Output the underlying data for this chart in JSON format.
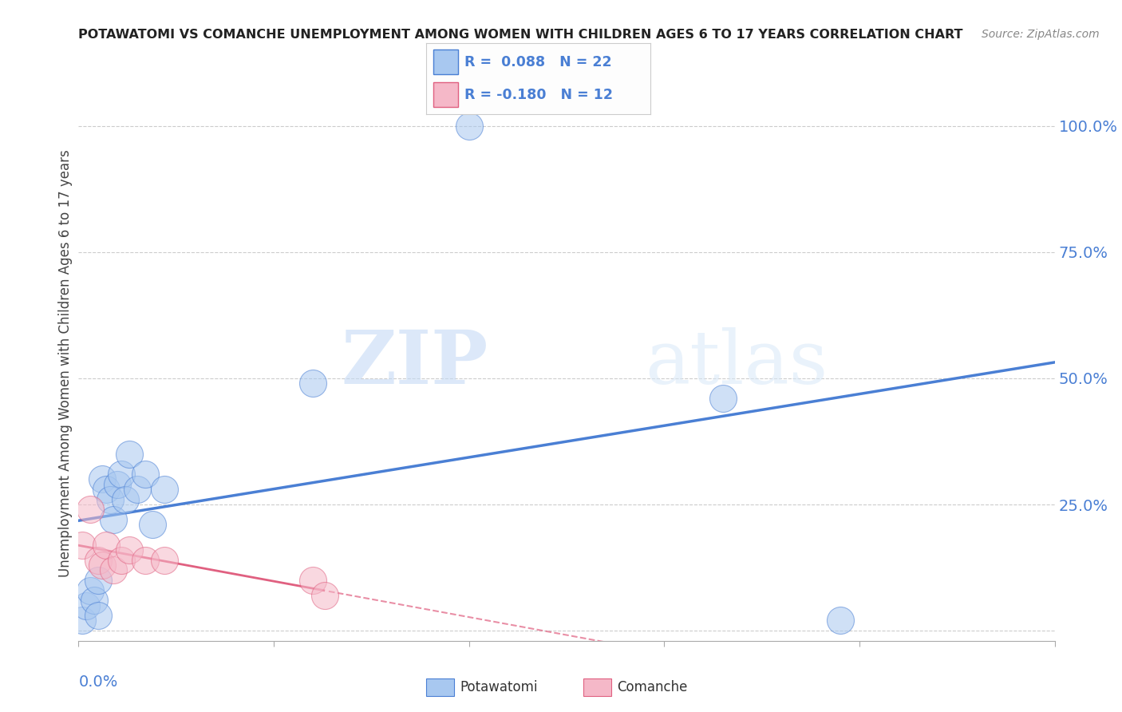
{
  "title": "POTAWATOMI VS COMANCHE UNEMPLOYMENT AMONG WOMEN WITH CHILDREN AGES 6 TO 17 YEARS CORRELATION CHART",
  "source": "Source: ZipAtlas.com",
  "ylabel": "Unemployment Among Women with Children Ages 6 to 17 years",
  "xlim": [
    0.0,
    0.25
  ],
  "ylim": [
    -0.02,
    1.08
  ],
  "yticks": [
    0.0,
    0.25,
    0.5,
    0.75,
    1.0
  ],
  "ytick_labels": [
    "",
    "25.0%",
    "50.0%",
    "75.0%",
    "100.0%"
  ],
  "potawatomi_color": "#a8c8f0",
  "comanche_color": "#f5b8c8",
  "potawatomi_line_color": "#4a7fd4",
  "comanche_line_color": "#e06080",
  "R_potawatomi": 0.088,
  "N_potawatomi": 22,
  "R_comanche": -0.18,
  "N_comanche": 12,
  "potawatomi_x": [
    0.001,
    0.002,
    0.003,
    0.004,
    0.005,
    0.005,
    0.006,
    0.007,
    0.008,
    0.009,
    0.01,
    0.011,
    0.012,
    0.013,
    0.015,
    0.017,
    0.019,
    0.022,
    0.06,
    0.1,
    0.165,
    0.195
  ],
  "potawatomi_y": [
    0.02,
    0.05,
    0.08,
    0.06,
    0.03,
    0.1,
    0.3,
    0.28,
    0.26,
    0.22,
    0.29,
    0.31,
    0.26,
    0.35,
    0.28,
    0.31,
    0.21,
    0.28,
    0.49,
    1.0,
    0.46,
    0.02
  ],
  "comanche_x": [
    0.001,
    0.003,
    0.005,
    0.006,
    0.007,
    0.009,
    0.011,
    0.013,
    0.017,
    0.022,
    0.06,
    0.063
  ],
  "comanche_y": [
    0.17,
    0.24,
    0.14,
    0.13,
    0.17,
    0.12,
    0.14,
    0.16,
    0.14,
    0.14,
    0.1,
    0.07
  ],
  "background_color": "#ffffff",
  "grid_color": "#cccccc",
  "watermark_zip": "ZIP",
  "watermark_atlas": "atlas"
}
